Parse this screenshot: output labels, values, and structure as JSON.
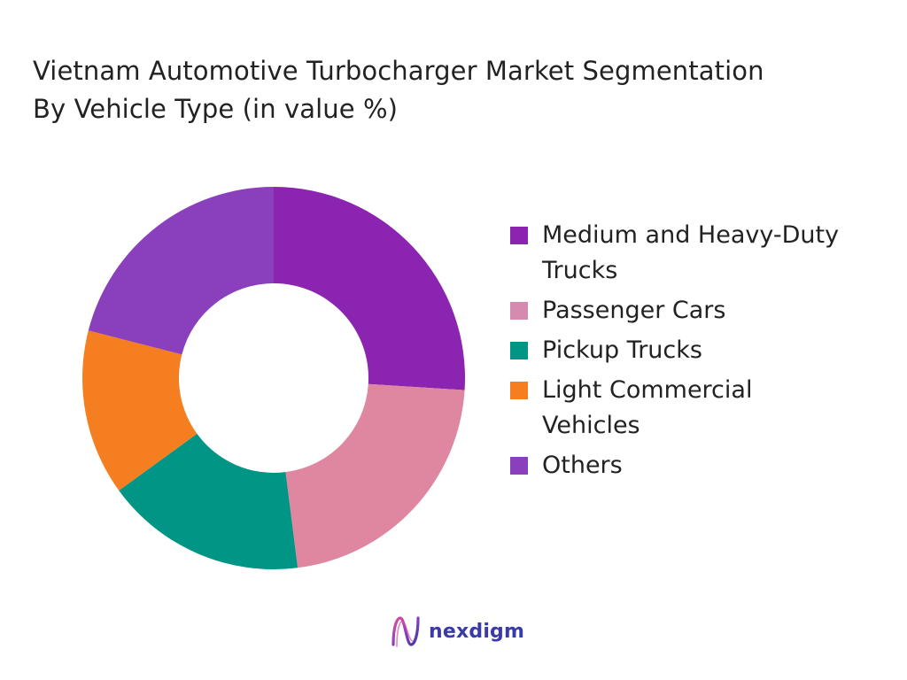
{
  "chart_data": {
    "type": "pie",
    "title": "Vietnam Automotive Turbocharger Market Segmentation By Vehicle Type (in value %)",
    "title_lines": [
      "Vietnam Automotive Turbocharger Market Segmentation",
      "By Vehicle Type (in value %)"
    ],
    "donut": true,
    "legend_position": "right",
    "categories": [
      "Medium and Heavy-Duty Trucks",
      "Passenger Cars",
      "Pickup Trucks",
      "Light Commercial Vehicles",
      "Others"
    ],
    "values": [
      26,
      22,
      17,
      14,
      21
    ],
    "colors": [
      "#8b24b0",
      "#df86a1",
      "#009585",
      "#f57f20",
      "#8a3fbd"
    ]
  },
  "legend": {
    "items": [
      {
        "lines": [
          "Medium and Heavy-Duty",
          "Trucks"
        ],
        "color": "#8b24b0"
      },
      {
        "lines": [
          "Passenger Cars"
        ],
        "color": "#d58bb0"
      },
      {
        "lines": [
          "Pickup Trucks"
        ],
        "color": "#009585"
      },
      {
        "lines": [
          "Light Commercial",
          "Vehicles"
        ],
        "color": "#f57f20"
      },
      {
        "lines": [
          "Others"
        ],
        "color": "#8a3fbd"
      }
    ]
  },
  "brand": {
    "name": "nexdigm",
    "logo_icon": "nexdigm-logo-icon"
  }
}
